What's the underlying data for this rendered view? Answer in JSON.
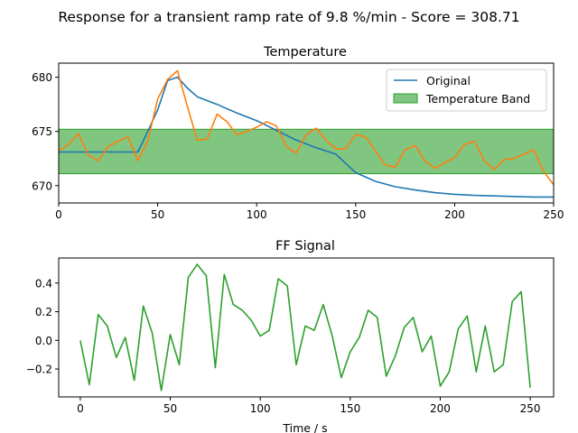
{
  "figure": {
    "suptitle": "Response for a transient ramp rate of 9.8 %/min - Score = 308.71"
  },
  "chart_data": [
    {
      "type": "line",
      "title": "Temperature",
      "xlabel": "",
      "ylabel": "",
      "xlim": [
        0,
        250
      ],
      "ylim": [
        668.4,
        681.3
      ],
      "xticks": [
        0,
        50,
        100,
        150,
        200,
        250
      ],
      "yticks": [
        670,
        675,
        680
      ],
      "grid": false,
      "legend_position": "top-right",
      "band": {
        "name": "Temperature Band",
        "y_low": 671.1,
        "y_high": 675.2,
        "color": "#2ca02c"
      },
      "series": [
        {
          "name": "Original",
          "color": "#1f77b4",
          "x": [
            0,
            10,
            20,
            30,
            40,
            45,
            50,
            55,
            60,
            65,
            70,
            80,
            90,
            100,
            110,
            120,
            130,
            140,
            150,
            160,
            170,
            180,
            190,
            200,
            210,
            220,
            230,
            240,
            250
          ],
          "y": [
            673.1,
            673.1,
            673.1,
            673.1,
            673.1,
            675,
            677,
            679.7,
            680,
            679,
            678.2,
            677.5,
            676.7,
            676,
            675.1,
            674.2,
            673.5,
            672.9,
            671.2,
            670.4,
            669.9,
            669.6,
            669.35,
            669.2,
            669.1,
            669.05,
            669.0,
            668.95,
            668.95
          ]
        },
        {
          "name": "",
          "color": "#ff7f0e",
          "x": [
            0,
            5,
            10,
            15,
            20,
            25,
            30,
            35,
            40,
            45,
            50,
            55,
            60,
            65,
            70,
            75,
            80,
            85,
            90,
            95,
            100,
            105,
            110,
            115,
            120,
            125,
            130,
            135,
            140,
            145,
            150,
            155,
            160,
            165,
            170,
            175,
            180,
            185,
            190,
            195,
            200,
            205,
            210,
            215,
            220,
            225,
            230,
            235,
            240,
            245,
            250
          ],
          "y": [
            673.2,
            673.8,
            674.8,
            672.8,
            672.3,
            673.6,
            674.1,
            674.5,
            672.3,
            674.1,
            678.0,
            679.8,
            680.6,
            677.3,
            674.2,
            674.3,
            676.6,
            675.9,
            674.7,
            675.0,
            675.4,
            675.9,
            675.5,
            673.6,
            673.0,
            674.7,
            675.3,
            674.2,
            673.4,
            673.4,
            674.7,
            674.5,
            673.2,
            671.9,
            671.7,
            673.3,
            673.7,
            672.3,
            671.6,
            672.1,
            672.6,
            673.8,
            674.1,
            672.3,
            671.5,
            672.4,
            672.5,
            672.9,
            673.3,
            671.3,
            670.1
          ]
        }
      ]
    },
    {
      "type": "line",
      "title": "FF Signal",
      "xlabel": "Time / s",
      "ylabel": "",
      "xlim": [
        -12,
        263
      ],
      "ylim": [
        -0.395,
        0.575
      ],
      "xticks": [
        0,
        50,
        100,
        150,
        200,
        250
      ],
      "yticks": [
        -0.2,
        0.0,
        0.2,
        0.4
      ],
      "yticklabels": [
        "−0.2",
        "0.0",
        "0.2",
        "0.4"
      ],
      "grid": false,
      "series": [
        {
          "name": "",
          "color": "#2ca02c",
          "x": [
            0,
            5,
            10,
            15,
            20,
            25,
            30,
            35,
            40,
            45,
            50,
            55,
            60,
            65,
            70,
            75,
            80,
            85,
            90,
            95,
            100,
            105,
            110,
            115,
            120,
            125,
            130,
            135,
            140,
            145,
            150,
            155,
            160,
            165,
            170,
            175,
            180,
            185,
            190,
            195,
            200,
            205,
            210,
            215,
            220,
            225,
            230,
            235,
            240,
            245,
            250
          ],
          "y": [
            0.0,
            -0.31,
            0.18,
            0.1,
            -0.12,
            0.02,
            -0.28,
            0.24,
            0.05,
            -0.35,
            0.04,
            -0.17,
            0.44,
            0.53,
            0.45,
            -0.19,
            0.46,
            0.25,
            0.21,
            0.14,
            0.03,
            0.07,
            0.43,
            0.38,
            -0.17,
            0.1,
            0.07,
            0.25,
            0.03,
            -0.26,
            -0.08,
            0.02,
            0.21,
            0.16,
            -0.25,
            -0.11,
            0.09,
            0.16,
            -0.08,
            0.03,
            -0.32,
            -0.22,
            0.08,
            0.17,
            -0.22,
            0.1,
            -0.22,
            -0.17,
            0.27,
            0.34,
            -0.33
          ]
        }
      ]
    }
  ]
}
